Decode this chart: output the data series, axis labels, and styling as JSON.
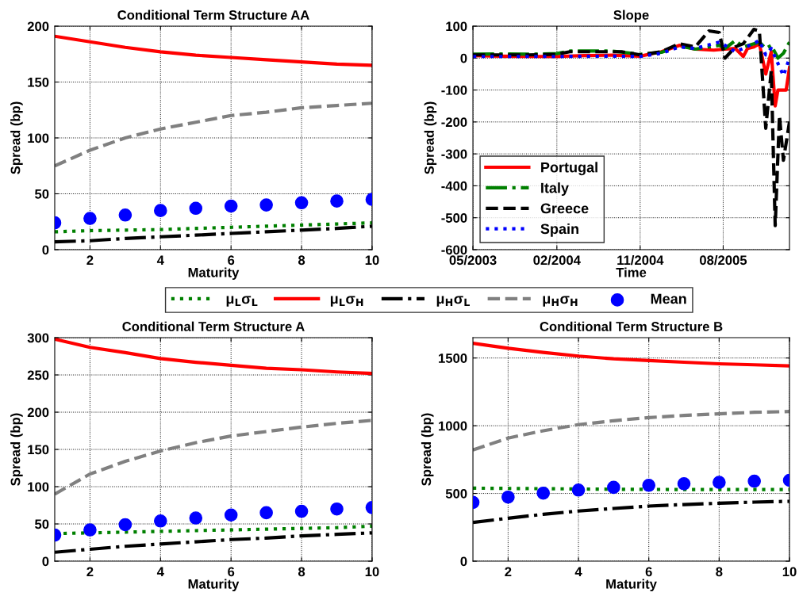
{
  "chart_data": [
    {
      "type": "line",
      "title": "Conditional Term Structure AA",
      "xlabel": "Maturity",
      "ylabel": "Spread (bp)",
      "x": [
        1,
        2,
        3,
        4,
        5,
        6,
        7,
        8,
        9,
        10
      ],
      "xlim": [
        1,
        10
      ],
      "xticks": [
        2,
        4,
        6,
        8,
        10
      ],
      "ylim": [
        0,
        200
      ],
      "yticks": [
        0,
        50,
        100,
        150,
        200
      ],
      "grid": true,
      "legend": "bottom",
      "series": [
        {
          "name": "μ$_{L}$σ$_{L}$",
          "color": "#008000",
          "line_style": "dotted",
          "values": [
            16,
            17,
            17.5,
            18,
            19,
            20,
            21,
            22,
            23,
            24
          ]
        },
        {
          "name": "μ$_{L}$σ$_{H}$",
          "color": "#ff0000",
          "line_style": "solid",
          "values": [
            191,
            186,
            181,
            177,
            174,
            172,
            170,
            168,
            166,
            165
          ]
        },
        {
          "name": "μ$_{H}$σ$_{L}$",
          "color": "#000000",
          "line_style": "dashdot",
          "values": [
            7,
            8,
            10,
            11.5,
            13,
            14.5,
            16,
            17.5,
            19,
            21
          ]
        },
        {
          "name": "μ$_{H}$σ$_{H}$",
          "color": "#808080",
          "line_style": "dashed",
          "values": [
            75,
            89,
            100,
            108,
            114,
            120,
            123,
            127,
            129,
            131
          ]
        },
        {
          "name": "Mean",
          "type": "scatter",
          "marker": "circle",
          "color": "#0000ff",
          "values": [
            24,
            28,
            31,
            35,
            37,
            39,
            40,
            42,
            43.5,
            45
          ]
        }
      ]
    },
    {
      "type": "line",
      "title": "Slope",
      "xlabel": "Time",
      "ylabel": "Spread (bp)",
      "xlim": [
        "2003-05-01",
        "2006-03-07"
      ],
      "xticks": [
        {
          "value": "2003-05-01",
          "label": "05/2003"
        },
        {
          "value": "2004-02-01",
          "label": "02/2004"
        },
        {
          "value": "2004-11-01",
          "label": "11/2004"
        },
        {
          "value": "2005-08-01",
          "label": "08/2005"
        }
      ],
      "ylim": [
        -600,
        100
      ],
      "yticks": [
        -600,
        -500,
        -400,
        -300,
        -200,
        -100,
        0,
        100
      ],
      "grid": true,
      "legend": "lower left",
      "series": [
        {
          "name": "Portugal",
          "color": "#ff0000",
          "line_style": "solid",
          "x": [
            "2003-05-01",
            "2003-08-01",
            "2003-11-01",
            "2004-02-01",
            "2004-05-01",
            "2004-08-01",
            "2004-11-01",
            "2005-01-10",
            "2005-03-10",
            "2005-05-01",
            "2005-07-01",
            "2005-08-07",
            "2005-09-10",
            "2005-10-06",
            "2005-10-20",
            "2005-11-10",
            "2005-11-28",
            "2005-12-19",
            "2006-01-06",
            "2006-01-19",
            "2006-01-28",
            "2006-02-24",
            "2006-03-07"
          ],
          "values": [
            8,
            6,
            5,
            5,
            8,
            9,
            6,
            20,
            40,
            28,
            25,
            28,
            30,
            5,
            30,
            35,
            45,
            -50,
            20,
            -150,
            -100,
            -100,
            -30
          ]
        },
        {
          "name": "Italy",
          "color": "#008000",
          "line_style": "dashdot",
          "x": [
            "2003-05-01",
            "2003-08-01",
            "2003-11-01",
            "2004-02-01",
            "2004-03-15",
            "2004-08-01",
            "2004-11-01",
            "2005-01-10",
            "2005-03-10",
            "2005-05-01",
            "2005-07-19",
            "2005-08-07",
            "2005-09-10",
            "2005-10-06",
            "2005-11-10",
            "2005-11-28",
            "2005-12-19",
            "2006-01-06",
            "2006-01-28",
            "2006-02-15",
            "2006-03-07"
          ],
          "values": [
            12,
            13,
            12,
            14,
            22,
            22,
            12,
            18,
            38,
            28,
            40,
            30,
            55,
            35,
            45,
            50,
            30,
            40,
            0,
            15,
            50
          ]
        },
        {
          "name": "Greece",
          "color": "#000000",
          "line_style": "dashed",
          "x": [
            "2003-05-01",
            "2003-11-01",
            "2004-02-01",
            "2004-03-15",
            "2004-09-01",
            "2004-11-01",
            "2005-01-10",
            "2005-03-10",
            "2005-05-01",
            "2005-06-15",
            "2005-07-19",
            "2005-08-07",
            "2005-09-10",
            "2005-10-06",
            "2005-11-10",
            "2005-11-28",
            "2005-12-19",
            "2006-01-06",
            "2006-01-19",
            "2006-02-02",
            "2006-02-15",
            "2006-03-07"
          ],
          "values": [
            10,
            10,
            12,
            20,
            20,
            10,
            20,
            45,
            35,
            85,
            80,
            0,
            35,
            45,
            90,
            85,
            -220,
            -40,
            -525,
            -180,
            -320,
            -200
          ]
        },
        {
          "name": "Spain",
          "color": "#0000ff",
          "line_style": "dotted",
          "x": [
            "2003-05-01",
            "2004-02-01",
            "2004-08-01",
            "2004-11-01",
            "2005-01-10",
            "2005-03-10",
            "2005-05-01",
            "2005-07-19",
            "2005-08-07",
            "2005-09-10",
            "2005-10-06",
            "2005-11-28",
            "2005-12-19",
            "2006-01-06",
            "2006-02-15",
            "2006-03-07"
          ],
          "values": [
            5,
            5,
            6,
            5,
            15,
            35,
            30,
            50,
            40,
            20,
            30,
            55,
            10,
            30,
            -55,
            0
          ]
        }
      ]
    },
    {
      "type": "line",
      "title": "Conditional Term Structure A",
      "xlabel": "Maturity",
      "ylabel": "Spread (bp)",
      "x": [
        1,
        2,
        3,
        4,
        5,
        6,
        7,
        8,
        9,
        10
      ],
      "xlim": [
        1,
        10
      ],
      "xticks": [
        2,
        4,
        6,
        8,
        10
      ],
      "ylim": [
        0,
        300
      ],
      "yticks": [
        0,
        50,
        100,
        150,
        200,
        250,
        300
      ],
      "grid": true,
      "series": [
        {
          "color": "#008000",
          "line_style": "dotted",
          "values": [
            37,
            38,
            39,
            40,
            41,
            42,
            43,
            44,
            45,
            47
          ]
        },
        {
          "color": "#ff0000",
          "line_style": "solid",
          "values": [
            298,
            287,
            280,
            272,
            267,
            263,
            259,
            257,
            254,
            252
          ]
        },
        {
          "color": "#000000",
          "line_style": "dashdot",
          "values": [
            12,
            16,
            20,
            23,
            26,
            29,
            31,
            34,
            36,
            38
          ]
        },
        {
          "color": "#808080",
          "line_style": "dashed",
          "values": [
            90,
            117,
            134,
            148,
            159,
            168,
            174,
            180,
            185,
            189
          ]
        },
        {
          "type": "scatter",
          "marker": "circle",
          "color": "#0000ff",
          "values": [
            35,
            42,
            49,
            54,
            58,
            62,
            65,
            67,
            70,
            72
          ]
        }
      ]
    },
    {
      "type": "line",
      "title": "Conditional Term Structure B",
      "xlabel": "Maturity",
      "ylabel": "Spread (bp)",
      "x": [
        1,
        2,
        3,
        4,
        5,
        6,
        7,
        8,
        9,
        10
      ],
      "xlim": [
        1,
        10
      ],
      "xticks": [
        2,
        4,
        6,
        8,
        10
      ],
      "ylim": [
        0,
        1650
      ],
      "yticks": [
        0,
        500,
        1000,
        1500
      ],
      "grid": true,
      "series": [
        {
          "color": "#008000",
          "line_style": "dotted",
          "values": [
            539,
            537,
            535,
            533,
            531,
            530,
            529,
            529,
            529,
            529
          ]
        },
        {
          "color": "#ff0000",
          "line_style": "solid",
          "values": [
            1609,
            1572,
            1541,
            1514,
            1494,
            1481,
            1469,
            1457,
            1450,
            1442
          ]
        },
        {
          "color": "#000000",
          "line_style": "dashdot",
          "values": [
            286,
            317,
            346,
            370,
            389,
            407,
            418,
            428,
            436,
            442
          ]
        },
        {
          "color": "#808080",
          "line_style": "dashed",
          "values": [
            821,
            909,
            963,
            1008,
            1037,
            1060,
            1076,
            1088,
            1099,
            1105
          ]
        },
        {
          "type": "scatter",
          "marker": "circle",
          "color": "#0000ff",
          "values": [
            434,
            473,
            502,
            525,
            545,
            560,
            572,
            582,
            591,
            597
          ]
        }
      ]
    }
  ]
}
